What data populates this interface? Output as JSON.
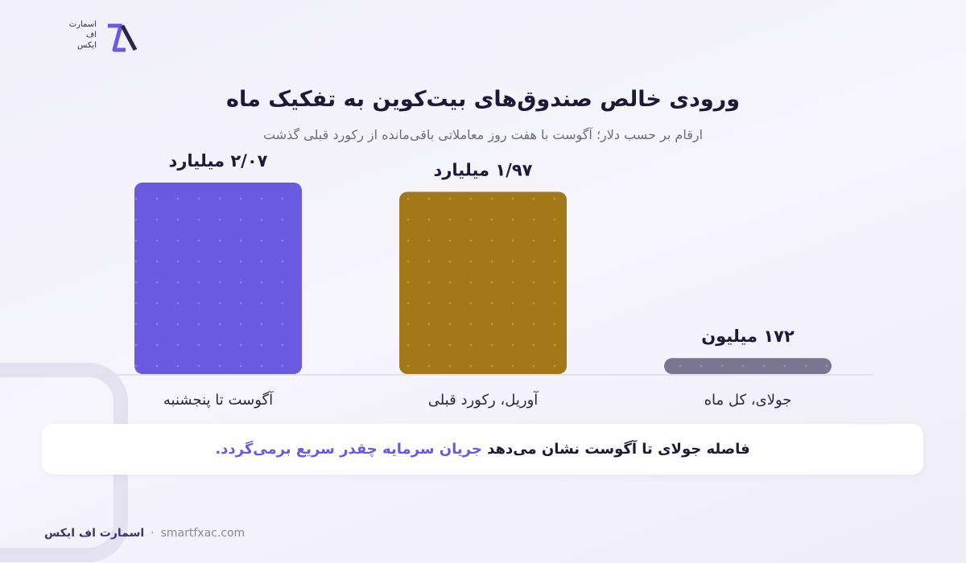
{
  "brand": {
    "logo_lines": [
      "اسمارت",
      "اف",
      "ایکس"
    ]
  },
  "chart_data": {
    "type": "bar",
    "title": "ورودی خالص صندوق‌های بیت‌کوین به تفکیک ماه",
    "subtitle": "ارقام بر حسب دلار؛ آگوست با هفت روز معاملاتی باقی‌مانده از رکورد قبلی گذشت",
    "categories": [
      "آگوست تا پنجشنبه",
      "آوریل، رکورد قبلی",
      "جولای، کل ماه"
    ],
    "values": [
      2.07,
      1.97,
      0.172
    ],
    "value_labels": [
      "۲/۰۷ میلیارد",
      "۱/۹۷ میلیارد",
      "۱۷۲ میلیون"
    ],
    "colors": [
      "#6a5ae0",
      "#a27818",
      "#7a7590"
    ]
  },
  "note": {
    "text": "فاصله جولای تا آگوست نشان می‌دهد",
    "highlight": "جریان سرمایه چقدر سریع برمی‌گردد."
  },
  "footer": {
    "brand": "اسمارت اف ایکس",
    "url": "smartfxac.com"
  }
}
